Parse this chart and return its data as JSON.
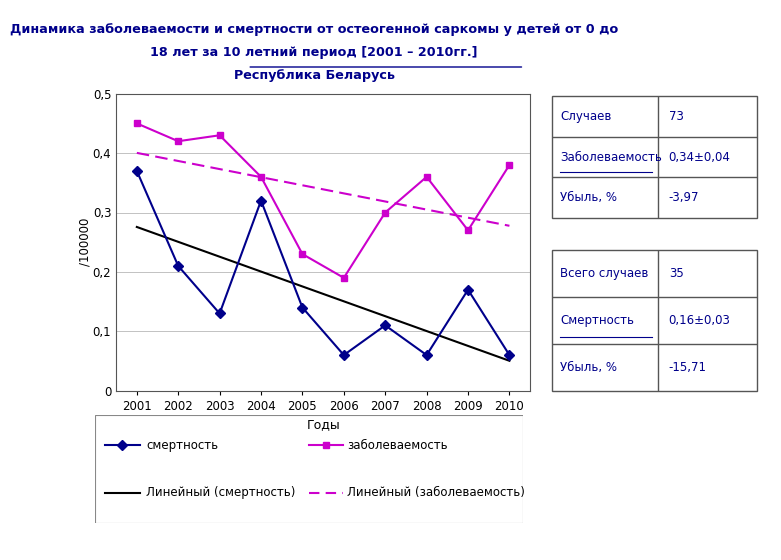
{
  "title_line1": "Динамика заболеваемости и смертности от остеогенной саркомы у детей от 0 до",
  "title_line2": "18 лет за 10 летний период [2001 – 2010гг.]",
  "title_line3": "Республика Беларусь",
  "years": [
    2001,
    2002,
    2003,
    2004,
    2005,
    2006,
    2007,
    2008,
    2009,
    2010
  ],
  "mortality": [
    0.37,
    0.21,
    0.13,
    0.32,
    0.14,
    0.06,
    0.11,
    0.06,
    0.17,
    0.06
  ],
  "morbidity": [
    0.45,
    0.42,
    0.43,
    0.36,
    0.23,
    0.19,
    0.3,
    0.36,
    0.27,
    0.38
  ],
  "ylabel": "/100000",
  "xlabel": "Годы",
  "ylim": [
    0,
    0.5
  ],
  "yticks": [
    0,
    0.1,
    0.2,
    0.3,
    0.4,
    0.5
  ],
  "ytick_labels": [
    "0",
    "0,1",
    "0,2",
    "0,3",
    "0,4",
    "0,5"
  ],
  "mortality_color": "#00008B",
  "morbidity_color": "#CC00CC",
  "trend_mortality_color": "#000000",
  "trend_morbidity_color": "#CC00CC",
  "legend_mortality": "смертность",
  "legend_morbidity": "заболеваемость",
  "legend_trend_mortality": "Линейный (смертность)",
  "legend_trend_morbidity": "Линейный (заболеваемость)",
  "table1_data": [
    [
      "Случаев",
      "73"
    ],
    [
      "Заболеваемость",
      "0,34±0,04"
    ],
    [
      "Убыль, %",
      "-3,97"
    ]
  ],
  "table2_data": [
    [
      "Всего случаев",
      "35"
    ],
    [
      "Смертность",
      "0,16±0,03"
    ],
    [
      "Убыль, %",
      "-15,71"
    ]
  ],
  "table_text_color": "#00008B",
  "underline_rows_t1": [
    1
  ],
  "underline_rows_t2": [
    1
  ],
  "background_color": "#ffffff",
  "title_color": "#00008B"
}
